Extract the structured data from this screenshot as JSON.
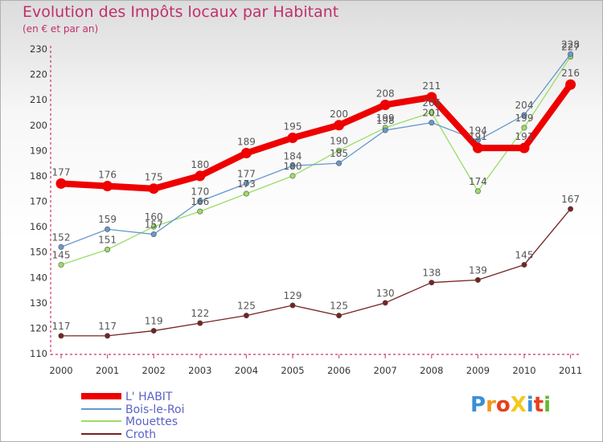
{
  "title": "Evolution des Impôts locaux par Habitant",
  "subtitle": "(en € et par an)",
  "logo": "ProXiti",
  "chart_data": {
    "type": "line",
    "categories": [
      "2000",
      "2001",
      "2002",
      "2003",
      "2004",
      "2005",
      "2006",
      "2007",
      "2008",
      "2009",
      "2010",
      "2011"
    ],
    "ylim": [
      110,
      230
    ],
    "yticks": [
      110,
      120,
      130,
      140,
      150,
      160,
      170,
      180,
      190,
      200,
      210,
      220,
      230
    ],
    "grid": false,
    "legend": "bottom-left",
    "series": [
      {
        "name": "L' HABIT",
        "color": "#ee0000",
        "values": [
          177,
          176,
          175,
          180,
          189,
          195,
          200,
          208,
          211,
          191,
          191,
          216
        ]
      },
      {
        "name": "Bois-le-Roi",
        "color": "#6699cc",
        "values": [
          152,
          159,
          157,
          170,
          177,
          184,
          185,
          198,
          201,
          194,
          204,
          228
        ]
      },
      {
        "name": "Mouettes",
        "color": "#99dd66",
        "values": [
          145,
          151,
          160,
          166,
          173,
          180,
          190,
          199,
          205,
          174,
          199,
          227
        ]
      },
      {
        "name": "Croth",
        "color": "#772222",
        "values": [
          117,
          117,
          119,
          122,
          125,
          129,
          125,
          130,
          138,
          139,
          145,
          167
        ]
      }
    ]
  }
}
